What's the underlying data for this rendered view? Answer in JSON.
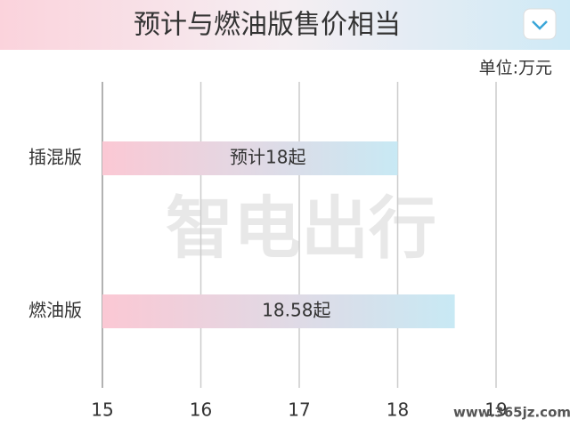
{
  "chart_data": {
    "type": "hbar",
    "title": "预计与燃油版售价相当",
    "unit": "单位:万元",
    "categories": [
      "插混版",
      "燃油版"
    ],
    "values": [
      18,
      18.58
    ],
    "value_labels": [
      "预计18起",
      "18.58起"
    ],
    "colors": [
      "#fbc8d4",
      "#c8e9f4"
    ],
    "xlim": [
      15,
      19
    ],
    "xticks": [
      15,
      16,
      17,
      18,
      19
    ],
    "grid": true,
    "watermark": "智电出行",
    "source": "www.365jz.com"
  }
}
